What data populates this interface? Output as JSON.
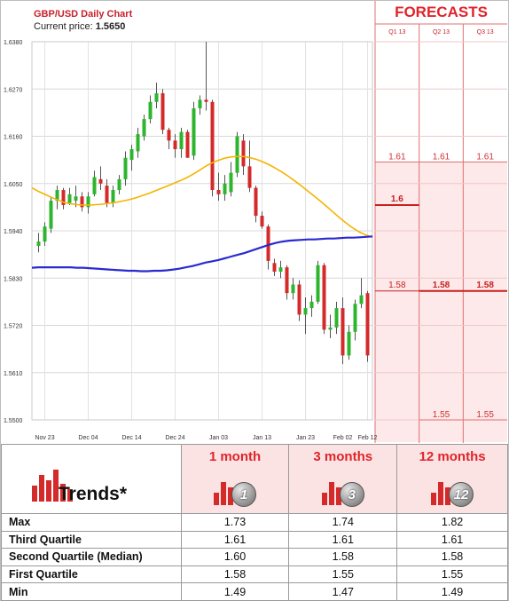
{
  "chart": {
    "title": "GBP/USD Daily Chart",
    "price_label": "Current price:",
    "price_value": "1.5650"
  },
  "forecasts": {
    "title": "FORECASTS",
    "quarters": [
      "Q1 13",
      "Q2 13",
      "Q3 13"
    ]
  },
  "chart_data": [
    {
      "type": "candlestick",
      "title": "GBP/USD Daily Chart",
      "ylim": [
        1.55,
        1.638
      ],
      "y_ticks": [
        "1.6380",
        "1.6270",
        "1.6160",
        "1.6050",
        "1.5940",
        "1.5830",
        "1.5720",
        "1.5610",
        "1.5500"
      ],
      "x_ticks": [
        "Nov 23",
        "Dec 04",
        "Dec 14",
        "Dec 24",
        "Jan 03",
        "Jan 13",
        "Jan 23",
        "Feb 02",
        "Feb 12"
      ],
      "grid": true,
      "candles": [
        [
          1.5905,
          1.5935,
          1.589,
          1.5915
        ],
        [
          1.5915,
          1.596,
          1.5905,
          1.595
        ],
        [
          1.5945,
          1.602,
          1.5935,
          1.601
        ],
        [
          1.601,
          1.6045,
          1.599,
          1.6035
        ],
        [
          1.6035,
          1.604,
          1.599,
          1.6
        ],
        [
          1.6005,
          1.604,
          1.6,
          1.6025
        ],
        [
          1.601,
          1.6045,
          1.5995,
          1.602
        ],
        [
          1.602,
          1.603,
          1.5985,
          1.5995
        ],
        [
          1.5995,
          1.603,
          1.598,
          1.602
        ],
        [
          1.6025,
          1.608,
          1.602,
          1.6065
        ],
        [
          1.606,
          1.609,
          1.6035,
          1.605
        ],
        [
          1.6045,
          1.606,
          1.5995,
          1.6005
        ],
        [
          1.6005,
          1.6045,
          1.5995,
          1.6035
        ],
        [
          1.6035,
          1.607,
          1.6025,
          1.606
        ],
        [
          1.606,
          1.6125,
          1.6045,
          1.611
        ],
        [
          1.6105,
          1.614,
          1.608,
          1.613
        ],
        [
          1.6125,
          1.618,
          1.611,
          1.6165
        ],
        [
          1.616,
          1.621,
          1.615,
          1.62
        ],
        [
          1.62,
          1.6255,
          1.619,
          1.624
        ],
        [
          1.624,
          1.6285,
          1.6225,
          1.626
        ],
        [
          1.626,
          1.627,
          1.6165,
          1.6175
        ],
        [
          1.6175,
          1.618,
          1.613,
          1.615
        ],
        [
          1.615,
          1.6165,
          1.611,
          1.613
        ],
        [
          1.613,
          1.618,
          1.611,
          1.617
        ],
        [
          1.617,
          1.6175,
          1.611,
          1.611
        ],
        [
          1.6115,
          1.624,
          1.6105,
          1.6225
        ],
        [
          1.6225,
          1.6255,
          1.621,
          1.6245
        ],
        [
          1.6245,
          1.638,
          1.622,
          1.624
        ],
        [
          1.624,
          1.6245,
          1.602,
          1.6035
        ],
        [
          1.6035,
          1.6075,
          1.601,
          1.6025
        ],
        [
          1.6025,
          1.607,
          1.601,
          1.605
        ],
        [
          1.603,
          1.61,
          1.602,
          1.6075
        ],
        [
          1.6075,
          1.617,
          1.6065,
          1.616
        ],
        [
          1.615,
          1.6165,
          1.607,
          1.609
        ],
        [
          1.609,
          1.615,
          1.603,
          1.604
        ],
        [
          1.604,
          1.6045,
          1.596,
          1.5975
        ],
        [
          1.5975,
          1.5985,
          1.5945,
          1.595
        ],
        [
          1.595,
          1.5955,
          1.585,
          1.587
        ],
        [
          1.5865,
          1.5875,
          1.5835,
          1.5845
        ],
        [
          1.5845,
          1.587,
          1.583,
          1.5855
        ],
        [
          1.5855,
          1.586,
          1.578,
          1.5795
        ],
        [
          1.5795,
          1.583,
          1.578,
          1.5815
        ],
        [
          1.5815,
          1.5825,
          1.573,
          1.5745
        ],
        [
          1.5745,
          1.5785,
          1.57,
          1.576
        ],
        [
          1.576,
          1.579,
          1.574,
          1.5775
        ],
        [
          1.5775,
          1.587,
          1.577,
          1.586
        ],
        [
          1.586,
          1.5865,
          1.57,
          1.571
        ],
        [
          1.571,
          1.5745,
          1.569,
          1.5715
        ],
        [
          1.5715,
          1.5775,
          1.57,
          1.576
        ],
        [
          1.576,
          1.5785,
          1.563,
          1.565
        ],
        [
          1.565,
          1.572,
          1.564,
          1.5705
        ],
        [
          1.5705,
          1.578,
          1.5685,
          1.577
        ],
        [
          1.577,
          1.583,
          1.576,
          1.579
        ],
        [
          1.5795,
          1.58,
          1.5635,
          1.565
        ]
      ],
      "series": [
        {
          "name": "",
          "color": "#f5b400",
          "values": [
            1.604,
            1.6032,
            1.6025,
            1.6018,
            1.6012,
            1.6006,
            1.6003,
            1.6001,
            1.6,
            1.6,
            1.6001,
            1.6002,
            1.6004,
            1.6006,
            1.6009,
            1.6012,
            1.6016,
            1.6021,
            1.6026,
            1.6032,
            1.6038,
            1.6044,
            1.605,
            1.6056,
            1.6063,
            1.6071,
            1.608,
            1.609,
            1.6098,
            1.6104,
            1.6109,
            1.6112,
            1.6113,
            1.6113,
            1.611,
            1.6106,
            1.61,
            1.6093,
            1.6085,
            1.6076,
            1.6066,
            1.6055,
            1.6044,
            1.6032,
            1.602,
            1.6008,
            1.5995,
            1.5982,
            1.5969,
            1.5957,
            1.5946,
            1.5937,
            1.593,
            1.5925
          ]
        },
        {
          "name": "",
          "color": "#2a2ad0",
          "values": [
            1.5854,
            1.5855,
            1.5855,
            1.5855,
            1.5855,
            1.5855,
            1.5855,
            1.5854,
            1.5854,
            1.5853,
            1.5852,
            1.5851,
            1.585,
            1.5849,
            1.5848,
            1.5847,
            1.5847,
            1.5846,
            1.5846,
            1.5847,
            1.5847,
            1.5848,
            1.585,
            1.5852,
            1.5855,
            1.5858,
            1.5862,
            1.5866,
            1.5869,
            1.5872,
            1.5876,
            1.588,
            1.5884,
            1.5888,
            1.5893,
            1.5898,
            1.5903,
            1.5908,
            1.5912,
            1.5915,
            1.5917,
            1.5918,
            1.5919,
            1.592,
            1.592,
            1.5921,
            1.5922,
            1.5922,
            1.5923,
            1.5924,
            1.5924,
            1.5925,
            1.5926,
            1.5927
          ]
        }
      ]
    },
    {
      "type": "table",
      "title": "FORECASTS",
      "columns": [
        "Q1 13",
        "Q2 13",
        "Q3 13"
      ],
      "ylim": [
        1.55,
        1.638
      ],
      "dark_lines": [
        {
          "column": 0,
          "value": 1.6,
          "label": "1.6"
        },
        {
          "column": 0,
          "value": 1.58,
          "label": "1.58"
        },
        {
          "column": 1,
          "value": 1.58,
          "label": "1.58"
        },
        {
          "column": 2,
          "value": 1.58,
          "label": "1.58"
        }
      ],
      "light_lines": [
        {
          "column": 0,
          "value": 1.61,
          "label": "1.61"
        },
        {
          "column": 1,
          "value": 1.61,
          "label": "1.61"
        },
        {
          "column": 2,
          "value": 1.61,
          "label": "1.61"
        },
        {
          "column": 1,
          "value": 1.55,
          "label": "1.55"
        },
        {
          "column": 2,
          "value": 1.55,
          "label": "1.55"
        }
      ]
    }
  ],
  "trends": {
    "label": "Trends*",
    "periods": [
      {
        "label": "1 month",
        "badge": "1"
      },
      {
        "label": "3 months",
        "badge": "3"
      },
      {
        "label": "12 months",
        "badge": "12"
      }
    ],
    "rows": [
      {
        "label": "Max",
        "values": [
          "1.73",
          "1.74",
          "1.82"
        ]
      },
      {
        "label": "Third Quartile",
        "values": [
          "1.61",
          "1.61",
          "1.61"
        ]
      },
      {
        "label": "Second Quartile (Median)",
        "values": [
          "1.60",
          "1.58",
          "1.58"
        ]
      },
      {
        "label": "First Quartile",
        "values": [
          "1.58",
          "1.55",
          "1.55"
        ]
      },
      {
        "label": "Min",
        "values": [
          "1.49",
          "1.47",
          "1.49"
        ]
      }
    ]
  },
  "colors": {
    "accent_red": "#e0232b",
    "candle_up": "#2db52d",
    "candle_down": "#d42a2a",
    "forecast_bg": "#fde9e9"
  }
}
